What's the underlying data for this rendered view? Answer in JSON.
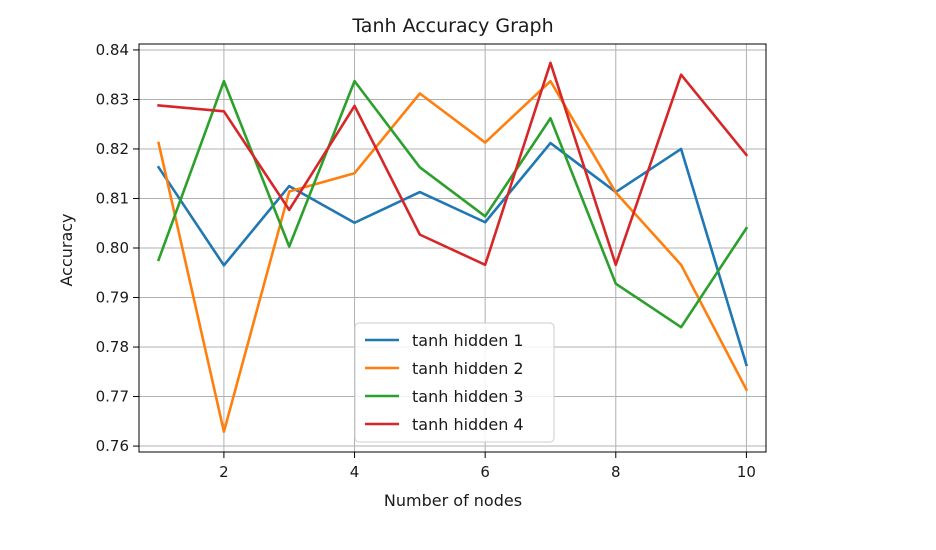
{
  "chart_data": {
    "type": "line",
    "title": "Tanh Accuracy Graph",
    "xlabel": "Number of nodes",
    "ylabel": "Accuracy",
    "x": [
      1,
      2,
      3,
      4,
      5,
      6,
      7,
      8,
      9,
      10
    ],
    "xlim": [
      0.7,
      10.3
    ],
    "ylim": [
      0.7588,
      0.8412
    ],
    "xticks": [
      2,
      4,
      6,
      8,
      10
    ],
    "xtick_labels": [
      "2",
      "4",
      "6",
      "8",
      "10"
    ],
    "yticks": [
      0.76,
      0.77,
      0.78,
      0.79,
      0.8,
      0.81,
      0.82,
      0.83,
      0.84
    ],
    "ytick_labels": [
      "0.76",
      "0.77",
      "0.78",
      "0.79",
      "0.80",
      "0.81",
      "0.82",
      "0.83",
      "0.84"
    ],
    "grid": true,
    "legend_position": "lower-center",
    "series": [
      {
        "name": "tanh hidden 1",
        "color": "#1f77b4",
        "values": [
          0.8163,
          0.7965,
          0.8125,
          0.8051,
          0.8113,
          0.8052,
          0.8212,
          0.8113,
          0.82,
          0.7764
        ]
      },
      {
        "name": "tanh hidden 2",
        "color": "#ff7f0e",
        "values": [
          0.8212,
          0.7629,
          0.8114,
          0.8151,
          0.8312,
          0.8213,
          0.8337,
          0.8112,
          0.7966,
          0.7714
        ]
      },
      {
        "name": "tanh hidden 3",
        "color": "#2ca02c",
        "values": [
          0.7976,
          0.8337,
          0.8003,
          0.8337,
          0.8163,
          0.8064,
          0.8262,
          0.7928,
          0.784,
          0.804
        ]
      },
      {
        "name": "tanh hidden 4",
        "color": "#d62728",
        "values": [
          0.8288,
          0.8276,
          0.8077,
          0.8287,
          0.8027,
          0.7966,
          0.8374,
          0.7966,
          0.835,
          0.8188
        ]
      }
    ]
  }
}
